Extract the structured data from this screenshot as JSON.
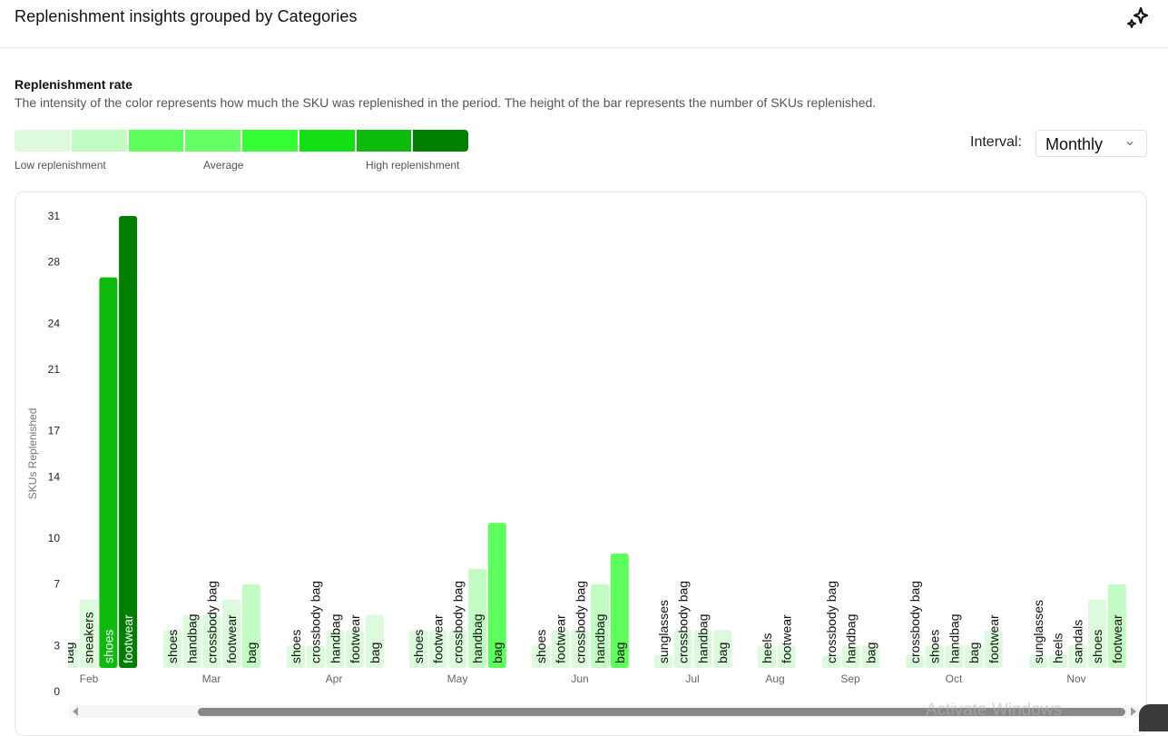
{
  "header": {
    "title": "Replenishment insights grouped by Categories",
    "action_icon": "sparkles-icon"
  },
  "section": {
    "title": "Replenishment rate",
    "description": "The intensity of the color represents how much the SKU was replenished in the period. The height of the bar represents the number of SKUs replenished."
  },
  "legend": {
    "colors": [
      "#dcfadc",
      "#c2fcc2",
      "#5cff5c",
      "#66ff66",
      "#33ff33",
      "#12e012",
      "#0cbb0c",
      "#007f00"
    ],
    "low_label": "Low replenishment",
    "mid_label": "Average",
    "high_label": "High replenishment"
  },
  "interval": {
    "label": "Interval:",
    "selected": "Monthly",
    "chevron_icon": "chevron-down-icon"
  },
  "watermark": "Activate Windows",
  "chart_data": {
    "type": "bar",
    "title": "",
    "xlabel": "",
    "ylabel": "SKUs Replenished",
    "y_ticks": [
      0,
      3,
      7,
      10,
      14,
      17,
      21,
      24,
      28,
      31
    ],
    "ylim": [
      0,
      31
    ],
    "grid": false,
    "groups": [
      {
        "month": "Feb",
        "bars": [
          {
            "category": "bag",
            "value": 3,
            "level": 0
          },
          {
            "category": "sneakers",
            "value": 6,
            "level": 0
          },
          {
            "category": "shoes",
            "value": 27,
            "level": 6
          },
          {
            "category": "footwear",
            "value": 31,
            "level": 7
          }
        ]
      },
      {
        "month": "Mar",
        "bars": [
          {
            "category": "shoes",
            "value": 4,
            "level": 0
          },
          {
            "category": "handbag",
            "value": 5,
            "level": 0
          },
          {
            "category": "crossbody bag",
            "value": 5,
            "level": 0
          },
          {
            "category": "footwear",
            "value": 6,
            "level": 0
          },
          {
            "category": "bag",
            "value": 7,
            "level": 1
          }
        ]
      },
      {
        "month": "Apr",
        "bars": [
          {
            "category": "shoes",
            "value": 3,
            "level": 0
          },
          {
            "category": "crossbody bag",
            "value": 3,
            "level": 0
          },
          {
            "category": "handbag",
            "value": 4,
            "level": 0
          },
          {
            "category": "footwear",
            "value": 4,
            "level": 0
          },
          {
            "category": "bag",
            "value": 5,
            "level": 0
          }
        ]
      },
      {
        "month": "May",
        "bars": [
          {
            "category": "shoes",
            "value": 4,
            "level": 0
          },
          {
            "category": "footwear",
            "value": 4,
            "level": 0
          },
          {
            "category": "crossbody bag",
            "value": 4,
            "level": 0
          },
          {
            "category": "handbag",
            "value": 8,
            "level": 1
          },
          {
            "category": "bag",
            "value": 11,
            "level": 2
          }
        ]
      },
      {
        "month": "Jun",
        "bars": [
          {
            "category": "shoes",
            "value": 3,
            "level": 0
          },
          {
            "category": "footwear",
            "value": 4,
            "level": 0
          },
          {
            "category": "crossbody bag",
            "value": 4,
            "level": 0
          },
          {
            "category": "handbag",
            "value": 7,
            "level": 1
          },
          {
            "category": "bag",
            "value": 9,
            "level": 2
          }
        ]
      },
      {
        "month": "Jul",
        "bars": [
          {
            "category": "sunglasses",
            "value": 2,
            "level": 0
          },
          {
            "category": "crossbody bag",
            "value": 4,
            "level": 0
          },
          {
            "category": "handbag",
            "value": 4,
            "level": 0
          },
          {
            "category": "bag",
            "value": 4,
            "level": 0
          }
        ]
      },
      {
        "month": "Aug",
        "bars": [
          {
            "category": "heels",
            "value": 3,
            "level": 0
          },
          {
            "category": "footwear",
            "value": 3,
            "level": 0
          }
        ]
      },
      {
        "month": "Sep",
        "bars": [
          {
            "category": "crossbody bag",
            "value": 2,
            "level": 0
          },
          {
            "category": "handbag",
            "value": 3,
            "level": 0
          },
          {
            "category": "bag",
            "value": 3,
            "level": 0
          }
        ]
      },
      {
        "month": "Oct",
        "bars": [
          {
            "category": "crossbody bag",
            "value": 2,
            "level": 0
          },
          {
            "category": "shoes",
            "value": 3,
            "level": 0
          },
          {
            "category": "handbag",
            "value": 3,
            "level": 0
          },
          {
            "category": "bag",
            "value": 3,
            "level": 0
          },
          {
            "category": "footwear",
            "value": 4,
            "level": 0
          }
        ]
      },
      {
        "month": "Nov",
        "bars": [
          {
            "category": "sunglasses",
            "value": 2,
            "level": 0
          },
          {
            "category": "heels",
            "value": 2,
            "level": 0
          },
          {
            "category": "sandals",
            "value": 3,
            "level": 0
          },
          {
            "category": "shoes",
            "value": 6,
            "level": 0
          },
          {
            "category": "footwear",
            "value": 7,
            "level": 1
          }
        ]
      }
    ]
  }
}
